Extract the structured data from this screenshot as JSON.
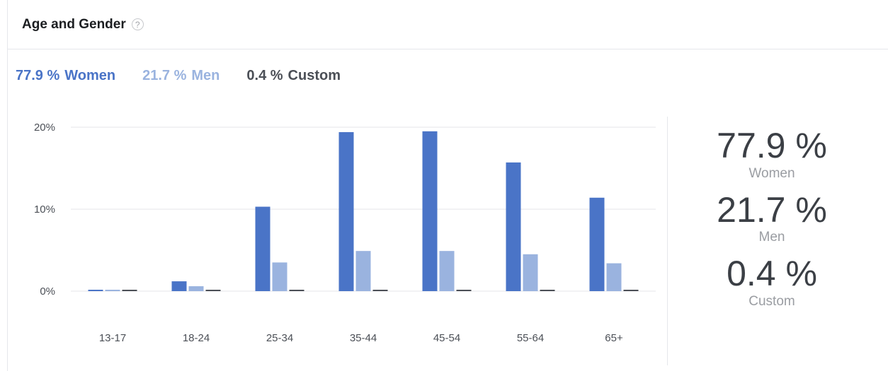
{
  "panel": {
    "title": "Age and Gender"
  },
  "legend": [
    {
      "pct": "77.9 %",
      "label": "Women",
      "color": "#4a74c7"
    },
    {
      "pct": "21.7 %",
      "label": "Men",
      "color": "#9ab3df"
    },
    {
      "pct": "0.4 %",
      "label": "Custom",
      "color": "#4b4f56"
    }
  ],
  "stats": [
    {
      "value": "77.9 %",
      "label": "Women"
    },
    {
      "value": "21.7 %",
      "label": "Men"
    },
    {
      "value": "0.4 %",
      "label": "Custom"
    }
  ],
  "chart_data": {
    "type": "bar",
    "categories": [
      "13-17",
      "18-24",
      "25-34",
      "35-44",
      "45-54",
      "55-64",
      "65+"
    ],
    "series": [
      {
        "name": "Women",
        "color": "#4a74c7",
        "values": [
          0.1,
          1.2,
          10.3,
          19.4,
          19.5,
          15.7,
          11.4
        ]
      },
      {
        "name": "Men",
        "color": "#9ab3df",
        "values": [
          0.1,
          0.6,
          3.5,
          4.9,
          4.9,
          4.5,
          3.4
        ]
      },
      {
        "name": "Custom",
        "color": "#4b4f56",
        "values": [
          0.05,
          0.05,
          0.1,
          0.05,
          0.1,
          0.05,
          0.05
        ]
      }
    ],
    "yticks": [
      "0%",
      "10%",
      "20%"
    ],
    "ylim": [
      0,
      20
    ],
    "grid": true
  }
}
